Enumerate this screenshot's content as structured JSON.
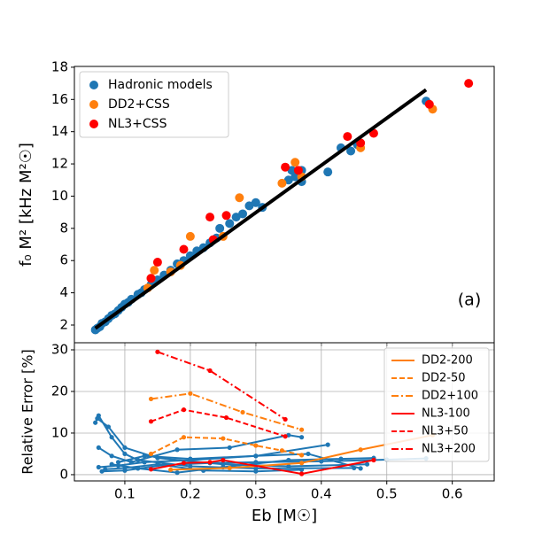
{
  "chart_data": [
    {
      "type": "scatter",
      "ylabel": "f₀ M² [kHz M²☉]",
      "annotation": "(a)",
      "xlim": [
        0.023,
        0.664
      ],
      "xticks": [
        0.1,
        0.2,
        0.3,
        0.4,
        0.5,
        0.6
      ],
      "ylim": [
        0.9,
        18.05
      ],
      "yticks": [
        2,
        4,
        6,
        8,
        10,
        12,
        14,
        16,
        18
      ],
      "legend": "upper left",
      "series": [
        {
          "name": "Hadronic models",
          "color": "#1f77b4",
          "x": [
            0.055,
            0.058,
            0.062,
            0.065,
            0.07,
            0.075,
            0.08,
            0.085,
            0.09,
            0.095,
            0.1,
            0.105,
            0.11,
            0.12,
            0.125,
            0.13,
            0.14,
            0.15,
            0.16,
            0.17,
            0.18,
            0.19,
            0.2,
            0.21,
            0.22,
            0.23,
            0.24,
            0.245,
            0.26,
            0.27,
            0.28,
            0.29,
            0.3,
            0.31,
            0.35,
            0.36,
            0.37,
            0.355,
            0.37,
            0.41,
            0.43,
            0.445,
            0.455,
            0.56
          ],
          "values": [
            1.7,
            1.8,
            1.9,
            2.1,
            2.2,
            2.4,
            2.6,
            2.7,
            2.9,
            3.1,
            3.3,
            3.4,
            3.6,
            3.9,
            4.0,
            4.2,
            4.5,
            4.8,
            5.1,
            5.4,
            5.8,
            6.0,
            6.3,
            6.6,
            6.8,
            7.1,
            7.4,
            8.0,
            8.3,
            8.7,
            8.9,
            9.4,
            9.6,
            9.3,
            11.0,
            11.2,
            11.6,
            11.6,
            10.9,
            11.5,
            13.0,
            12.8,
            13.2,
            15.9
          ]
        },
        {
          "name": "DD2+CSS",
          "color": "#ff7f0e",
          "x": [
            0.135,
            0.14,
            0.145,
            0.17,
            0.185,
            0.2,
            0.25,
            0.275,
            0.34,
            0.36,
            0.37,
            0.46,
            0.57
          ],
          "values": [
            4.3,
            4.9,
            5.4,
            5.3,
            5.7,
            7.5,
            7.5,
            9.9,
            10.8,
            12.1,
            11.2,
            13.0,
            15.4
          ]
        },
        {
          "name": "NL3+CSS",
          "color": "#ff0000",
          "x": [
            0.14,
            0.15,
            0.19,
            0.23,
            0.235,
            0.255,
            0.345,
            0.365,
            0.44,
            0.46,
            0.48,
            0.565,
            0.625
          ],
          "values": [
            4.9,
            5.9,
            6.7,
            8.7,
            7.3,
            8.8,
            11.8,
            11.6,
            13.7,
            13.3,
            13.9,
            15.7,
            17.0
          ]
        }
      ],
      "fit_line": {
        "color": "#000000",
        "x": [
          0.055,
          0.56
        ],
        "values": [
          1.8,
          16.6
        ]
      }
    },
    {
      "type": "line",
      "xlabel": "Eb [M☉]",
      "ylabel": "Relative Error [%]",
      "xlim": [
        0.023,
        0.664
      ],
      "xticks": [
        0.1,
        0.2,
        0.3,
        0.4,
        0.5,
        0.6
      ],
      "ylim": [
        -1.5,
        31.7
      ],
      "yticks": [
        0,
        10,
        20,
        30
      ],
      "grid": true,
      "legend": "upper right",
      "series": [
        {
          "color": "#1f77b4",
          "dash": "solid",
          "x": [
            0.055,
            0.06,
            0.08,
            0.1,
            0.12,
            0.2,
            0.3,
            0.45
          ],
          "values": [
            12.5,
            14.2,
            9.0,
            5.0,
            3.5,
            2.0,
            1.5,
            1.6
          ]
        },
        {
          "color": "#1f77b4",
          "dash": "solid",
          "x": [
            0.058,
            0.075,
            0.1,
            0.15,
            0.25,
            0.35,
            0.47
          ],
          "values": [
            13.5,
            11.5,
            6.5,
            4.0,
            2.5,
            2.0,
            2.5
          ]
        },
        {
          "color": "#1f77b4",
          "dash": "solid",
          "x": [
            0.06,
            0.08,
            0.11,
            0.18,
            0.26,
            0.35,
            0.37
          ],
          "values": [
            6.5,
            4.5,
            3.0,
            6.0,
            6.5,
            9.5,
            9.0
          ]
        },
        {
          "color": "#1f77b4",
          "dash": "solid",
          "x": [
            0.06,
            0.09,
            0.13,
            0.2,
            0.3,
            0.41
          ],
          "values": [
            1.8,
            2.2,
            3.0,
            3.5,
            4.5,
            7.2
          ]
        },
        {
          "color": "#1f77b4",
          "dash": "solid",
          "x": [
            0.07,
            0.1,
            0.15,
            0.22,
            0.3,
            0.37
          ],
          "values": [
            1.3,
            1.6,
            2.5,
            1.0,
            0.8,
            1.2
          ]
        },
        {
          "color": "#1f77b4",
          "dash": "solid",
          "x": [
            0.08,
            0.12,
            0.18,
            0.25,
            0.35,
            0.43,
            0.48
          ],
          "values": [
            2.5,
            1.5,
            0.5,
            1.8,
            3.5,
            3.8,
            4.0
          ]
        },
        {
          "color": "#1f77b4",
          "dash": "solid",
          "x": [
            0.065,
            0.1,
            0.16,
            0.23,
            0.3,
            0.4,
            0.5,
            0.56
          ],
          "values": [
            0.8,
            1.0,
            2.3,
            2.8,
            3.0,
            3.2,
            3.6,
            3.9
          ]
        },
        {
          "color": "#1f77b4",
          "dash": "solid",
          "x": [
            0.09,
            0.13,
            0.2,
            0.3,
            0.38,
            0.46
          ],
          "values": [
            3.0,
            4.5,
            3.8,
            4.5,
            5.0,
            1.5
          ]
        },
        {
          "name": "DD2-200",
          "color": "#ff7f0e",
          "dash": "solid",
          "x": [
            0.17,
            0.26,
            0.37,
            0.46,
            0.57
          ],
          "values": [
            1.2,
            1.6,
            2.8,
            6.0,
            9.5
          ]
        },
        {
          "name": "DD2-50",
          "color": "#ff7f0e",
          "dash": "dashed",
          "x": [
            0.14,
            0.19,
            0.25,
            0.3,
            0.34,
            0.37
          ],
          "values": [
            5.0,
            9.0,
            8.7,
            7.0,
            5.8,
            4.7
          ]
        },
        {
          "name": "DD2+100",
          "color": "#ff7f0e",
          "dash": "dashdot",
          "x": [
            0.14,
            0.2,
            0.28,
            0.37
          ],
          "values": [
            18.2,
            19.5,
            15.0,
            10.8
          ]
        },
        {
          "name": "NL3-100",
          "color": "#ff0000",
          "dash": "solid",
          "x": [
            0.14,
            0.19,
            0.23,
            0.25,
            0.37,
            0.48
          ],
          "values": [
            1.3,
            2.8,
            3.0,
            3.5,
            0.2,
            3.5
          ]
        },
        {
          "name": "NL3+50",
          "color": "#ff0000",
          "dash": "dashed",
          "x": [
            0.14,
            0.19,
            0.255,
            0.345
          ],
          "values": [
            12.8,
            15.6,
            13.7,
            9.2
          ]
        },
        {
          "name": "NL3+200",
          "color": "#ff0000",
          "dash": "dashdot",
          "x": [
            0.15,
            0.23,
            0.345
          ],
          "values": [
            29.5,
            25.0,
            13.3
          ]
        }
      ]
    }
  ]
}
